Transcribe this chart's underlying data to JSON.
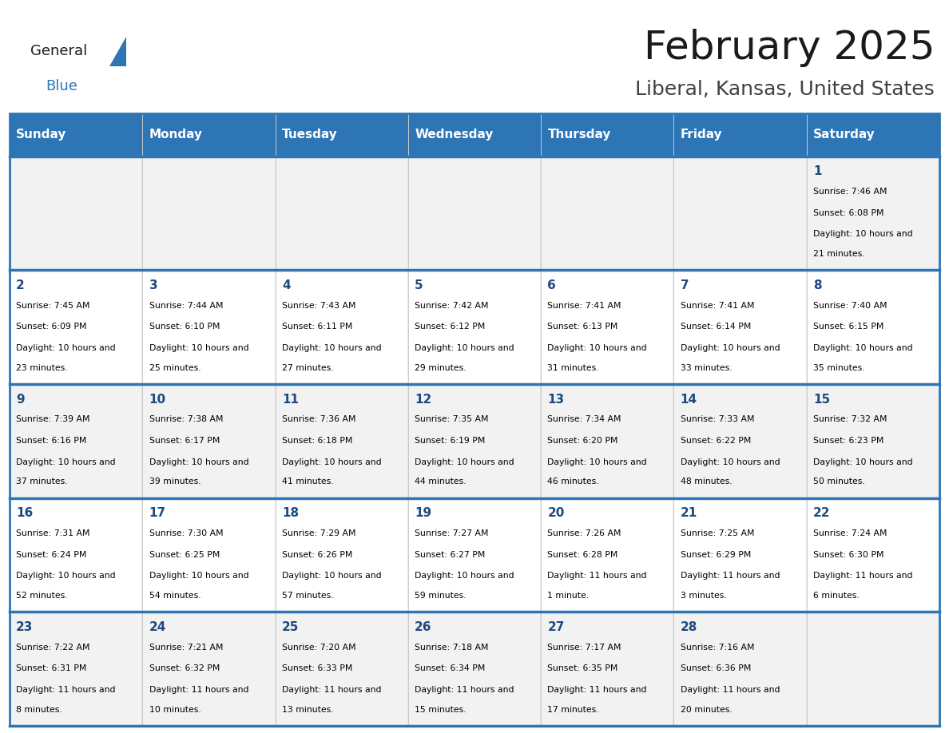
{
  "title": "February 2025",
  "subtitle": "Liberal, Kansas, United States",
  "header_bg": "#2E75B6",
  "header_text_color": "#FFFFFF",
  "day_names": [
    "Sunday",
    "Monday",
    "Tuesday",
    "Wednesday",
    "Thursday",
    "Friday",
    "Saturday"
  ],
  "odd_row_bg": "#F2F2F2",
  "even_row_bg": "#FFFFFF",
  "cell_text_color": "#000000",
  "date_color": "#1F497D",
  "grid_line_color": "#2E75B6",
  "title_color": "#1A1A1A",
  "subtitle_color": "#404040",
  "logo_general_color": "#1A1A1A",
  "logo_blue_color": "#2E75B6",
  "logo_triangle_color": "#2E75B6",
  "days": [
    {
      "day": 1,
      "col": 6,
      "row": 0,
      "sunrise": "7:46 AM",
      "sunset": "6:08 PM",
      "daylight": "10 hours and 21 minutes"
    },
    {
      "day": 2,
      "col": 0,
      "row": 1,
      "sunrise": "7:45 AM",
      "sunset": "6:09 PM",
      "daylight": "10 hours and 23 minutes"
    },
    {
      "day": 3,
      "col": 1,
      "row": 1,
      "sunrise": "7:44 AM",
      "sunset": "6:10 PM",
      "daylight": "10 hours and 25 minutes"
    },
    {
      "day": 4,
      "col": 2,
      "row": 1,
      "sunrise": "7:43 AM",
      "sunset": "6:11 PM",
      "daylight": "10 hours and 27 minutes"
    },
    {
      "day": 5,
      "col": 3,
      "row": 1,
      "sunrise": "7:42 AM",
      "sunset": "6:12 PM",
      "daylight": "10 hours and 29 minutes"
    },
    {
      "day": 6,
      "col": 4,
      "row": 1,
      "sunrise": "7:41 AM",
      "sunset": "6:13 PM",
      "daylight": "10 hours and 31 minutes"
    },
    {
      "day": 7,
      "col": 5,
      "row": 1,
      "sunrise": "7:41 AM",
      "sunset": "6:14 PM",
      "daylight": "10 hours and 33 minutes"
    },
    {
      "day": 8,
      "col": 6,
      "row": 1,
      "sunrise": "7:40 AM",
      "sunset": "6:15 PM",
      "daylight": "10 hours and 35 minutes"
    },
    {
      "day": 9,
      "col": 0,
      "row": 2,
      "sunrise": "7:39 AM",
      "sunset": "6:16 PM",
      "daylight": "10 hours and 37 minutes"
    },
    {
      "day": 10,
      "col": 1,
      "row": 2,
      "sunrise": "7:38 AM",
      "sunset": "6:17 PM",
      "daylight": "10 hours and 39 minutes"
    },
    {
      "day": 11,
      "col": 2,
      "row": 2,
      "sunrise": "7:36 AM",
      "sunset": "6:18 PM",
      "daylight": "10 hours and 41 minutes"
    },
    {
      "day": 12,
      "col": 3,
      "row": 2,
      "sunrise": "7:35 AM",
      "sunset": "6:19 PM",
      "daylight": "10 hours and 44 minutes"
    },
    {
      "day": 13,
      "col": 4,
      "row": 2,
      "sunrise": "7:34 AM",
      "sunset": "6:20 PM",
      "daylight": "10 hours and 46 minutes"
    },
    {
      "day": 14,
      "col": 5,
      "row": 2,
      "sunrise": "7:33 AM",
      "sunset": "6:22 PM",
      "daylight": "10 hours and 48 minutes"
    },
    {
      "day": 15,
      "col": 6,
      "row": 2,
      "sunrise": "7:32 AM",
      "sunset": "6:23 PM",
      "daylight": "10 hours and 50 minutes"
    },
    {
      "day": 16,
      "col": 0,
      "row": 3,
      "sunrise": "7:31 AM",
      "sunset": "6:24 PM",
      "daylight": "10 hours and 52 minutes"
    },
    {
      "day": 17,
      "col": 1,
      "row": 3,
      "sunrise": "7:30 AM",
      "sunset": "6:25 PM",
      "daylight": "10 hours and 54 minutes"
    },
    {
      "day": 18,
      "col": 2,
      "row": 3,
      "sunrise": "7:29 AM",
      "sunset": "6:26 PM",
      "daylight": "10 hours and 57 minutes"
    },
    {
      "day": 19,
      "col": 3,
      "row": 3,
      "sunrise": "7:27 AM",
      "sunset": "6:27 PM",
      "daylight": "10 hours and 59 minutes"
    },
    {
      "day": 20,
      "col": 4,
      "row": 3,
      "sunrise": "7:26 AM",
      "sunset": "6:28 PM",
      "daylight": "11 hours and 1 minute"
    },
    {
      "day": 21,
      "col": 5,
      "row": 3,
      "sunrise": "7:25 AM",
      "sunset": "6:29 PM",
      "daylight": "11 hours and 3 minutes"
    },
    {
      "day": 22,
      "col": 6,
      "row": 3,
      "sunrise": "7:24 AM",
      "sunset": "6:30 PM",
      "daylight": "11 hours and 6 minutes"
    },
    {
      "day": 23,
      "col": 0,
      "row": 4,
      "sunrise": "7:22 AM",
      "sunset": "6:31 PM",
      "daylight": "11 hours and 8 minutes"
    },
    {
      "day": 24,
      "col": 1,
      "row": 4,
      "sunrise": "7:21 AM",
      "sunset": "6:32 PM",
      "daylight": "11 hours and 10 minutes"
    },
    {
      "day": 25,
      "col": 2,
      "row": 4,
      "sunrise": "7:20 AM",
      "sunset": "6:33 PM",
      "daylight": "11 hours and 13 minutes"
    },
    {
      "day": 26,
      "col": 3,
      "row": 4,
      "sunrise": "7:18 AM",
      "sunset": "6:34 PM",
      "daylight": "11 hours and 15 minutes"
    },
    {
      "day": 27,
      "col": 4,
      "row": 4,
      "sunrise": "7:17 AM",
      "sunset": "6:35 PM",
      "daylight": "11 hours and 17 minutes"
    },
    {
      "day": 28,
      "col": 5,
      "row": 4,
      "sunrise": "7:16 AM",
      "sunset": "6:36 PM",
      "daylight": "11 hours and 20 minutes"
    }
  ]
}
